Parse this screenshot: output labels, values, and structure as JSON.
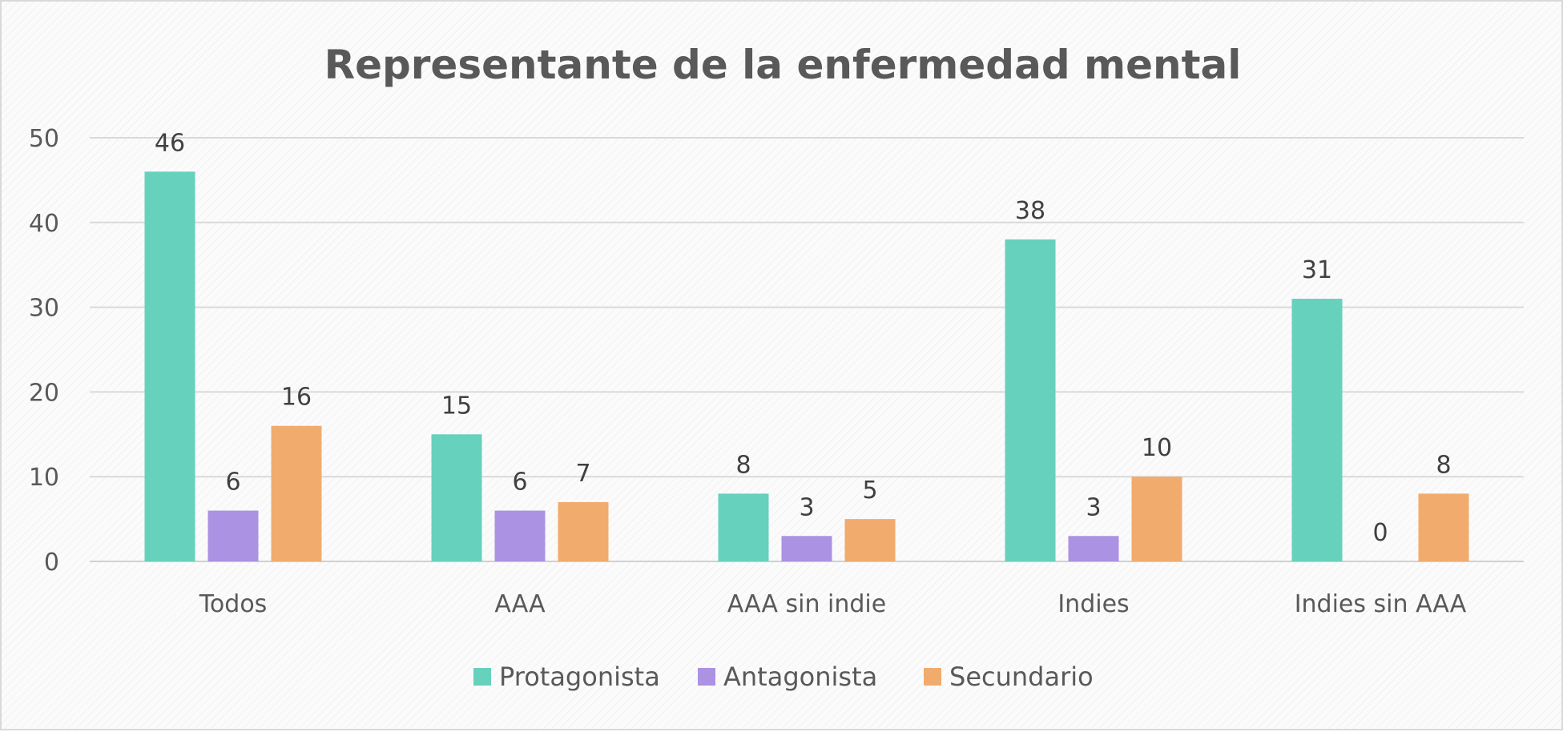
{
  "chart_data": {
    "type": "bar",
    "title": "Representante de la enfermedad mental",
    "categories": [
      "Todos",
      "AAA",
      "AAA sin indie",
      "Indies",
      "Indies sin AAA"
    ],
    "series": [
      {
        "name": "Protagonista",
        "color": "#66d1bd",
        "values": [
          46,
          15,
          8,
          38,
          31
        ]
      },
      {
        "name": "Antagonista",
        "color": "#ab92e3",
        "values": [
          6,
          6,
          3,
          3,
          0
        ]
      },
      {
        "name": "Secundario",
        "color": "#f1ab6d",
        "values": [
          16,
          7,
          5,
          10,
          8
        ]
      }
    ],
    "ylim": [
      0,
      50
    ],
    "yticks": [
      0,
      10,
      20,
      30,
      40,
      50
    ],
    "grid": true,
    "legend_position": "bottom",
    "data_labels": true
  }
}
